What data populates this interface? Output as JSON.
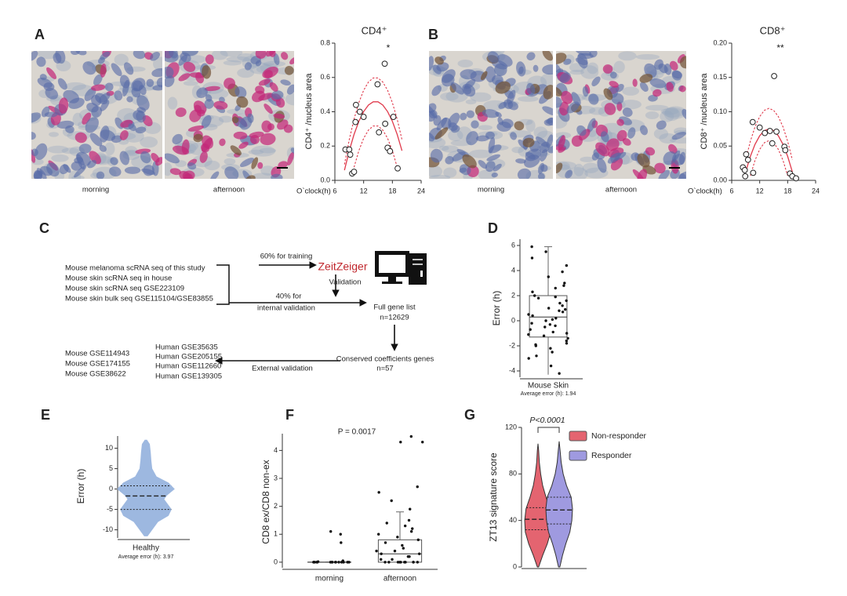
{
  "panel_labels": {
    "a": "A",
    "b": "B",
    "c": "C",
    "d": "D",
    "e": "E",
    "f": "F",
    "g": "G"
  },
  "micrographs": [
    {
      "caption": "morning"
    },
    {
      "caption": "afternoon"
    },
    {
      "caption": "morning"
    },
    {
      "caption": "afternoon"
    }
  ],
  "diagram": {
    "sources": [
      "Mouse melanoma scRNA seq of this study",
      "Mouse skin scRNA seq in house",
      "Mouse skin scRNA seq GSE223109",
      "Mouse skin bulk seq GSE115104/GSE83855"
    ],
    "training_label": "60% for training",
    "model": "ZeitZeiger",
    "validation": "Validation",
    "internal_label": [
      "40% for",
      "internal validation"
    ],
    "gene_list": [
      "Full gene list",
      "n=12629"
    ],
    "conserved": [
      "Conserved coefficients genes",
      "n=57"
    ],
    "external_label": "External validation",
    "mouse_sets": [
      "Mouse GSE114943",
      "Mouse GSE174155",
      "Mouse GSE38622"
    ],
    "human_sets": [
      "Human GSE35635",
      "Human GSE205155",
      "Human GSE112660",
      "Human GSE139305"
    ]
  },
  "chart_data": [
    {
      "type": "scatter",
      "title": "CD4⁺",
      "ylabel": "CD4⁺ /nucleus area",
      "xlabel": "O`clock(h)",
      "x": [
        8.2,
        9,
        9.2,
        9.6,
        10,
        10.3,
        10.4,
        11.2,
        12,
        14.9,
        15.2,
        16.4,
        16.5,
        17,
        17.5,
        18.2,
        19.1
      ],
      "values": [
        0.18,
        0.18,
        0.15,
        0.04,
        0.05,
        0.34,
        0.44,
        0.4,
        0.37,
        0.56,
        0.28,
        0.68,
        0.33,
        0.19,
        0.17,
        0.37,
        0.07
      ],
      "xlim": [
        6,
        24
      ],
      "ylim": [
        0,
        0.8
      ],
      "xticks": [
        6,
        12,
        18,
        24
      ],
      "yticks": [
        {
          "value": 0,
          "label": "0.0"
        },
        0.2,
        0.4,
        0.6,
        0.8
      ],
      "annotation": "*",
      "fit_color": "#e03a4c",
      "fit": {
        "x": [
          8,
          9,
          10,
          11,
          12,
          13,
          14,
          15,
          16,
          17,
          18,
          19,
          20
        ],
        "values": [
          0.059,
          0.173,
          0.268,
          0.344,
          0.401,
          0.439,
          0.458,
          0.458,
          0.439,
          0.401,
          0.344,
          0.268,
          0.173
        ],
        "upper": [
          0.093,
          0.237,
          0.357,
          0.453,
          0.525,
          0.573,
          0.597,
          0.597,
          0.573,
          0.525,
          0.453,
          0.357,
          0.237
        ],
        "lower": [
          null,
          null,
          0.077,
          0.173,
          0.245,
          0.293,
          0.317,
          0.317,
          0.293,
          0.245,
          0.173,
          0.077,
          null
        ]
      }
    },
    {
      "type": "scatter",
      "title": "CD8⁺",
      "ylabel": "CD8⁺ /nucleus area",
      "xlabel": "O`clock(h)",
      "x": [
        8.4,
        8.8,
        9.1,
        8.9,
        9.5,
        10.5,
        10.6,
        12,
        13.1,
        14.2,
        14.7,
        15.1,
        15.6,
        17.3,
        17.5,
        18.5,
        19,
        19.8
      ],
      "values": [
        0.019,
        0.015,
        0.038,
        0.006,
        0.03,
        0.085,
        0.011,
        0.077,
        0.069,
        0.072,
        0.054,
        0.152,
        0.071,
        0.049,
        0.044,
        0.01,
        0.006,
        0.003
      ],
      "xlim": [
        6,
        24
      ],
      "ylim": [
        0,
        0.2
      ],
      "xticks": [
        6,
        12,
        18,
        24
      ],
      "yticks": [
        {
          "value": 0,
          "label": "0.00"
        },
        0.05,
        {
          "value": 0.1,
          "label": "0.10"
        },
        0.15,
        {
          "value": 0.2,
          "label": "0.20"
        }
      ],
      "annotation": "**",
      "fit_color": "#e03a4c",
      "fit": {
        "x": [
          9,
          10,
          11,
          12,
          13,
          14,
          15,
          16,
          17,
          18,
          19
        ],
        "values": [
          0.0125,
          0.035,
          0.0525,
          0.065,
          0.0725,
          0.075,
          0.0725,
          0.065,
          0.0525,
          0.035,
          0.0125
        ],
        "upper": [
          0.03,
          0.057,
          0.078,
          0.093,
          0.102,
          0.105,
          0.102,
          0.093,
          0.078,
          0.057,
          0.03
        ],
        "lower": [
          null,
          0.0068,
          0.0292,
          0.0452,
          0.0548,
          0.058,
          0.0548,
          0.0452,
          0.0292,
          0.0068,
          null
        ]
      }
    },
    {
      "type": "box",
      "ylabel": "Error (h)",
      "categories": [
        "Mouse Skin"
      ],
      "note": "Average error (h): 1.94",
      "ylim": [
        -4.5,
        6.5
      ],
      "yticks": [
        -4,
        -2,
        0,
        2,
        4,
        6
      ],
      "boxes": [
        {
          "min": -4.3,
          "q1": -1.3,
          "median": 0.3,
          "q3": 2.0,
          "max": 5.9
        }
      ],
      "points": [
        [
          5.9,
          5.0,
          4.4,
          3.9,
          3.0,
          2.8,
          2.6,
          2.3,
          2.0,
          1.8,
          1.6,
          1.4,
          1.2,
          1.0,
          0.9,
          0.7,
          0.5,
          0.4,
          0.2,
          0.1,
          0,
          -0.2,
          -0.4,
          -0.5,
          -0.7,
          -0.9,
          -1.0,
          -1.2,
          -1.4,
          -1.6,
          -1.8,
          -1.9,
          -2.0,
          -2.2,
          -2.5,
          -2.8,
          -3.0,
          -3.6,
          -4.2,
          0.8,
          1.9,
          -0.3,
          3.5,
          -1.1,
          5.5
        ]
      ]
    },
    {
      "type": "violin",
      "ylabel": "Error (h)",
      "categories": [
        "Healthy"
      ],
      "note": "Average error (h): 3.97",
      "ylim": [
        -12,
        13
      ],
      "yticks": [
        -10,
        -5,
        0,
        5,
        10
      ],
      "series": [
        {
          "color": "#9db8e0",
          "quartiles": {
            "q1": -5,
            "median": -1.7,
            "q3": 0.8
          },
          "density": {
            "y": [
              -11.5,
              -10,
              -8,
              -6.5,
              -5,
              -3.5,
              -2.5,
              -1.5,
              0,
              1.5,
              3,
              5,
              7,
              9,
              11,
              12
            ],
            "width": [
              0.05,
              0.2,
              0.4,
              0.75,
              0.85,
              0.7,
              0.6,
              0.7,
              0.95,
              0.75,
              0.35,
              0.2,
              0.17,
              0.15,
              0.12,
              0.03
            ]
          }
        }
      ]
    },
    {
      "type": "box",
      "ylabel": "CD8 ex/CD8 non-ex",
      "annotation": "P = 0.0017",
      "categories": [
        "morning",
        "afternoon"
      ],
      "ylim": [
        -0.2,
        4.6
      ],
      "yticks": [
        0,
        1,
        2,
        3,
        4
      ],
      "boxes": [
        {
          "min": 0,
          "q1": 0,
          "median": 0,
          "q3": 0,
          "max": 0
        },
        {
          "min": 0,
          "q1": 0,
          "median": 0.3,
          "q3": 0.8,
          "max": 1.8
        }
      ],
      "points": [
        [
          1.0,
          0.7,
          1.1,
          0.05,
          0.02,
          0,
          0,
          0,
          0,
          0,
          0,
          0,
          0,
          0,
          0,
          0,
          0,
          0,
          0,
          0
        ],
        [
          4.5,
          4.3,
          4.3,
          2.7,
          2.5,
          2.2,
          1.9,
          1.5,
          1.4,
          1.3,
          1.2,
          1.1,
          1.0,
          0.9,
          0.8,
          0.7,
          0.6,
          0.5,
          0.4,
          0.4,
          0.3,
          0.3,
          0.2,
          0.2,
          0.1,
          0.1,
          0,
          0,
          0,
          0,
          0,
          0,
          0,
          0,
          0,
          0
        ]
      ]
    },
    {
      "type": "violin",
      "ylabel": "ZT13 signature score",
      "annotation": "P<0.0001",
      "legend": "upper right",
      "ylim": [
        0,
        120
      ],
      "yticks": [
        0,
        40,
        80,
        120
      ],
      "series": [
        {
          "name": "Non-responder",
          "color": "#e46470",
          "quartiles": {
            "q1": 32,
            "median": 41,
            "q3": 51
          },
          "density": {
            "y": [
              0,
              5,
              10,
              20,
              30,
              40,
              50,
              60,
              70,
              80,
              90,
              100,
              106
            ],
            "width": [
              0.05,
              0.2,
              0.35,
              0.7,
              0.95,
              1.0,
              0.9,
              0.6,
              0.35,
              0.2,
              0.1,
              0.05,
              0
            ]
          }
        },
        {
          "name": "Responder",
          "color": "#9f9ae0",
          "quartiles": {
            "q1": 37,
            "median": 49,
            "q3": 60
          },
          "density": {
            "y": [
              0,
              5,
              10,
              20,
              30,
              40,
              50,
              60,
              70,
              80,
              90,
              100,
              108
            ],
            "width": [
              0.05,
              0.15,
              0.25,
              0.5,
              0.8,
              0.95,
              1.0,
              0.9,
              0.55,
              0.3,
              0.15,
              0.07,
              0
            ]
          }
        }
      ]
    }
  ]
}
